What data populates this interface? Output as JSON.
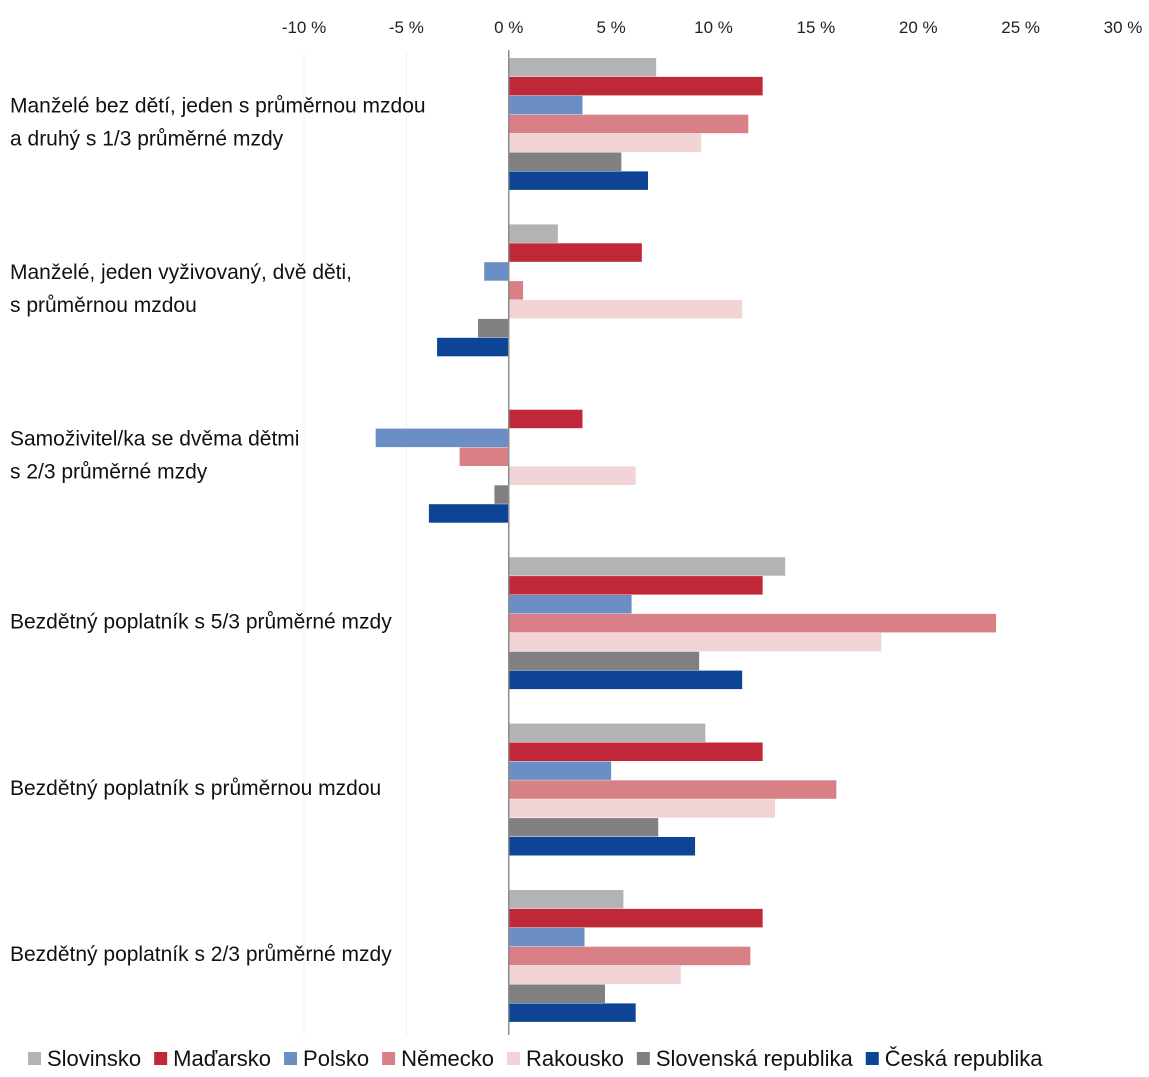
{
  "chart_data": {
    "type": "bar",
    "orientation": "horizontal",
    "categories": [
      [
        "Manželé bez dětí, jeden s průměrnou mzdou",
        "a druhý s 1/3 průměrné mzdy"
      ],
      [
        "Manželé, jeden vyživovaný, dvě děti,",
        "s průměrnou mzdou"
      ],
      [
        "Samoživitel/ka se dvěma dětmi",
        "s 2/3 průměrné mzdy"
      ],
      [
        "Bezdětný poplatník s 5/3 průměrné mzdy"
      ],
      [
        "Bezdětný poplatník s průměrnou mzdou"
      ],
      [
        "Bezdětný poplatník s 2/3 průměrné mzdy"
      ]
    ],
    "series": [
      {
        "name": "Slovinsko",
        "color": "#b3b3b3",
        "values": [
          7.2,
          2.4,
          0.0,
          13.5,
          9.6,
          5.6
        ]
      },
      {
        "name": "Maďarsko",
        "color": "#c0283a",
        "values": [
          12.4,
          6.5,
          3.6,
          12.4,
          12.4,
          12.4
        ]
      },
      {
        "name": "Polsko",
        "color": "#6b8fc4",
        "values": [
          3.6,
          -1.2,
          -6.5,
          6.0,
          5.0,
          3.7
        ]
      },
      {
        "name": "Německo",
        "color": "#d88086",
        "values": [
          11.7,
          0.7,
          -2.4,
          23.8,
          16.0,
          11.8
        ]
      },
      {
        "name": "Rakousko",
        "color": "#f2d4d7",
        "values": [
          9.4,
          11.4,
          6.2,
          18.2,
          13.0,
          8.4
        ]
      },
      {
        "name": "Slovenská republika",
        "color": "#808080",
        "values": [
          5.5,
          -1.5,
          -0.7,
          9.3,
          7.3,
          4.7
        ]
      },
      {
        "name": "Česká republika",
        "color": "#0d4496",
        "values": [
          6.8,
          -3.5,
          -3.9,
          11.4,
          9.1,
          6.2
        ]
      }
    ],
    "xlim": [
      -10,
      30
    ],
    "xticks": [
      -10,
      -5,
      0,
      5,
      10,
      15,
      20,
      25,
      30
    ],
    "xtick_labels": [
      "-10 %",
      "-5 %",
      "0 %",
      "5 %",
      "10 %",
      "15 %",
      "20 %",
      "25 %",
      "30 %"
    ],
    "title": "",
    "xlabel": "",
    "ylabel": "",
    "grid": false,
    "legend_position": "bottom"
  }
}
